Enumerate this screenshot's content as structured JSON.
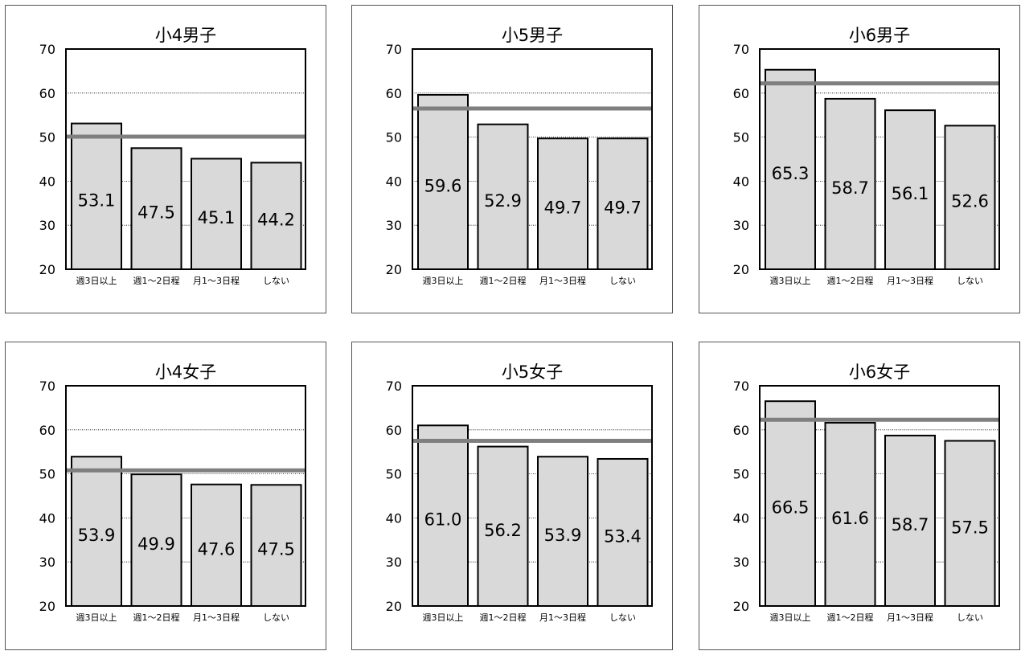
{
  "chart_data": [
    {
      "type": "bar",
      "title": "小4男子",
      "categories": [
        "週3日以上",
        "週1～2日程",
        "月1～3日程",
        "しない"
      ],
      "values": [
        53.1,
        47.5,
        45.1,
        44.2
      ],
      "data_labels": [
        "53.1",
        "47.5",
        "45.1",
        "44.2"
      ],
      "reference_line": 50.1,
      "ylim": [
        20,
        70
      ],
      "yticks": [
        20,
        30,
        40,
        50,
        60,
        70
      ],
      "grid": true,
      "bar_color": "#d9d9d9",
      "line_color": "#7f7f7f"
    },
    {
      "type": "bar",
      "title": "小5男子",
      "categories": [
        "週3日以上",
        "週1～2日程",
        "月1～3日程",
        "しない"
      ],
      "values": [
        59.6,
        52.9,
        49.7,
        49.7
      ],
      "data_labels": [
        "59.6",
        "52.9",
        "49.7",
        "49.7"
      ],
      "reference_line": 56.5,
      "ylim": [
        20,
        70
      ],
      "yticks": [
        20,
        30,
        40,
        50,
        60,
        70
      ],
      "grid": true,
      "bar_color": "#d9d9d9",
      "line_color": "#7f7f7f"
    },
    {
      "type": "bar",
      "title": "小6男子",
      "categories": [
        "週3日以上",
        "週1～2日程",
        "月1～3日程",
        "しない"
      ],
      "values": [
        65.3,
        58.7,
        56.1,
        52.6
      ],
      "data_labels": [
        "65.3",
        "58.7",
        "56.1",
        "52.6"
      ],
      "reference_line": 62.2,
      "ylim": [
        20,
        70
      ],
      "yticks": [
        20,
        30,
        40,
        50,
        60,
        70
      ],
      "grid": true,
      "bar_color": "#d9d9d9",
      "line_color": "#7f7f7f"
    },
    {
      "type": "bar",
      "title": "小4女子",
      "categories": [
        "週3日以上",
        "週1～2日程",
        "月1～3日程",
        "しない"
      ],
      "values": [
        53.9,
        49.9,
        47.6,
        47.5
      ],
      "data_labels": [
        "53.9",
        "49.9",
        "47.6",
        "47.5"
      ],
      "reference_line": 50.8,
      "ylim": [
        20,
        70
      ],
      "yticks": [
        20,
        30,
        40,
        50,
        60,
        70
      ],
      "grid": true,
      "bar_color": "#d9d9d9",
      "line_color": "#7f7f7f"
    },
    {
      "type": "bar",
      "title": "小5女子",
      "categories": [
        "週3日以上",
        "週1～2日程",
        "月1～3日程",
        "しない"
      ],
      "values": [
        61.0,
        56.2,
        53.9,
        53.4
      ],
      "data_labels": [
        "61.0",
        "56.2",
        "53.9",
        "53.4"
      ],
      "reference_line": 57.5,
      "ylim": [
        20,
        70
      ],
      "yticks": [
        20,
        30,
        40,
        50,
        60,
        70
      ],
      "grid": true,
      "bar_color": "#d9d9d9",
      "line_color": "#7f7f7f"
    },
    {
      "type": "bar",
      "title": "小6女子",
      "categories": [
        "週3日以上",
        "週1～2日程",
        "月1～3日程",
        "しない"
      ],
      "values": [
        66.5,
        61.6,
        58.7,
        57.5
      ],
      "data_labels": [
        "66.5",
        "61.6",
        "58.7",
        "57.5"
      ],
      "reference_line": 62.3,
      "ylim": [
        20,
        70
      ],
      "yticks": [
        20,
        30,
        40,
        50,
        60,
        70
      ],
      "grid": true,
      "bar_color": "#d9d9d9",
      "line_color": "#7f7f7f"
    }
  ]
}
